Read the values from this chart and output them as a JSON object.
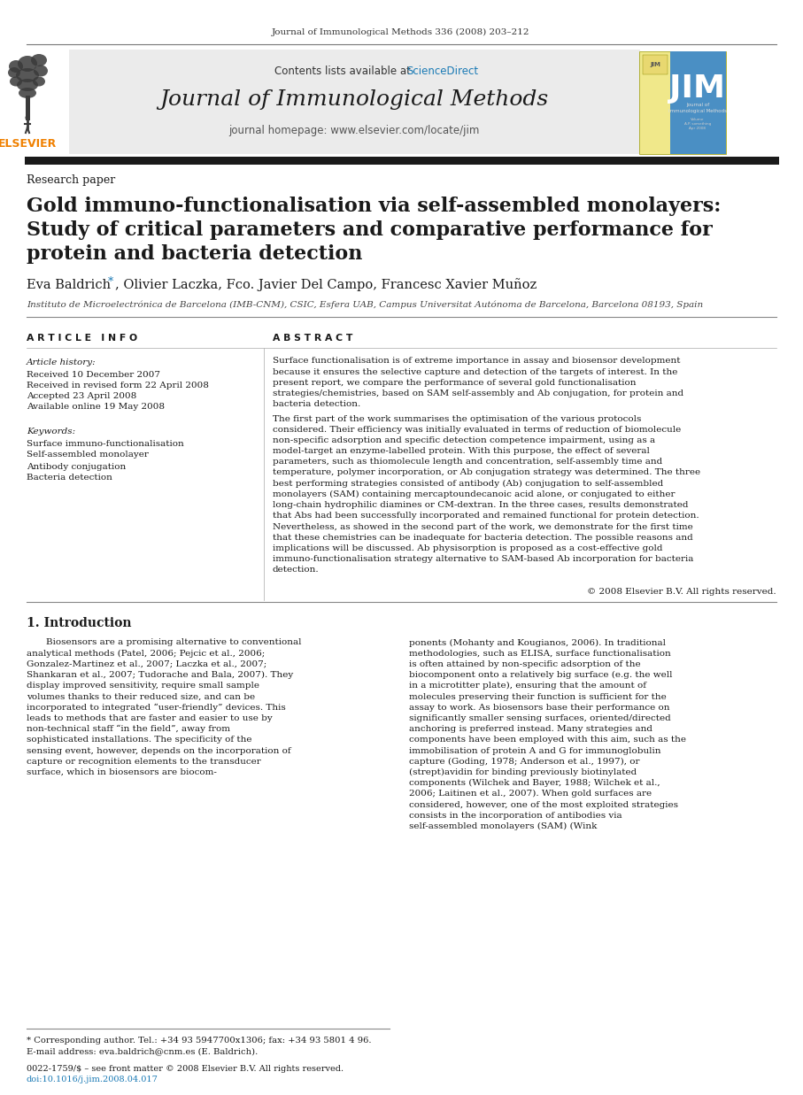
{
  "journal_header": "Journal of Immunological Methods 336 (2008) 203–212",
  "contents_line": "Contents lists available at",
  "sciencedirect": "ScienceDirect",
  "journal_title": "Journal of Immunological Methods",
  "journal_homepage": "journal homepage: www.elsevier.com/locate/jim",
  "section_label": "Research paper",
  "paper_title_line1": "Gold immuno-functionalisation via self-assembled monolayers:",
  "paper_title_line2": "Study of critical parameters and comparative performance for",
  "paper_title_line3": "protein and bacteria detection",
  "author_part1": "Eva Baldrich",
  "author_star": "*",
  "author_part2": ", Olivier Laczka, Fco. Javier Del Campo, Francesc Xavier Muñoz",
  "affiliation": "Instituto de Microelectrónica de Barcelona (IMB-CNM), CSIC, Esfera UAB, Campus Universitat Autónoma de Barcelona, Barcelona 08193, Spain",
  "article_info_header": "A R T I C L E   I N F O",
  "abstract_header": "A B S T R A C T",
  "article_history_label": "Article history:",
  "received1": "Received 10 December 2007",
  "received2": "Received in revised form 22 April 2008",
  "accepted": "Accepted 23 April 2008",
  "online": "Available online 19 May 2008",
  "keywords_label": "Keywords:",
  "keywords": [
    "Surface immuno-functionalisation",
    "Self-assembled monolayer",
    "Antibody conjugation",
    "Bacteria detection"
  ],
  "abstract_para1": "Surface functionalisation is of extreme importance in assay and biosensor development because it ensures the selective capture and detection of the targets of interest. In the present report, we compare the performance of several gold functionalisation strategies/chemistries, based on SAM self-assembly and Ab conjugation, for protein and bacteria detection.",
  "abstract_para2": "The first part of the work summarises the optimisation of the various protocols considered. Their efficiency was initially evaluated in terms of reduction of biomolecule non-specific adsorption and specific detection competence impairment, using as a model-target an enzyme-labelled protein. With this purpose, the effect of several parameters, such as thiomolecule length and concentration, self-assembly time and temperature, polymer incorporation, or Ab conjugation strategy was determined. The three best performing strategies consisted of antibody (Ab) conjugation to self-assembled monolayers (SAM) containing mercaptoundecanoic acid alone, or conjugated to either long-chain hydrophilic diamines or CM-dextran. In the three cases, results demonstrated that Abs had been successfully incorporated and remained functional for protein detection. Nevertheless, as showed in the second part of the work, we demonstrate for the first time that these chemistries can be inadequate for bacteria detection. The possible reasons and implications will be discussed. Ab physisorption is proposed as a cost-effective gold immuno-functionalisation strategy alternative to SAM-based Ab incorporation for bacteria detection.",
  "abstract_copyright": "© 2008 Elsevier B.V. All rights reserved.",
  "intro_header": "1. Introduction",
  "intro_col1": "Biosensors are a promising alternative to conventional analytical methods (Patel, 2006; Pejcic et al., 2006; Gonzalez-Martinez et al., 2007; Laczka et al., 2007; Shankaran et al., 2007; Tudorache and Bala, 2007). They display improved sensitivity, require small sample volumes thanks to their reduced size, and can be incorporated to integrated “user-friendly” devices. This leads to methods that are faster and easier to use by non-technical staff “in the field”, away from sophisticated installations. The specificity of the sensing event, however, depends on the incorporation of capture or recognition elements to the transducer surface, which in biosensors are biocom-",
  "intro_col2": "ponents (Mohanty and Kougianos, 2006). In traditional methodologies, such as ELISA, surface functionalisation is often attained by non-specific adsorption of the biocomponent onto a relatively big surface (e.g. the well in a microtitter plate), ensuring that the amount of molecules preserving their function is sufficient for the assay to work. As biosensors base their performance on significantly smaller sensing surfaces, oriented/directed anchoring is preferred instead. Many strategies and components have been employed with this aim, such as the immobilisation of protein A and G for immunoglobulin capture (Goding, 1978; Anderson et al., 1997), or (strept)avidin for binding previously biotinylated components (Wilchek and Bayer, 1988; Wilchek et al., 2006; Laitinen et al., 2007). When gold surfaces are considered, however, one of the most exploited strategies consists in the incorporation of antibodies via self-assembled monolayers (SAM) (Wink",
  "footnote_star": "* Corresponding author. Tel.: +34 93 5947700x1306; fax: +34 93 5801 4 96.",
  "footnote_email": "E-mail address: eva.baldrich@cnm.es (E. Baldrich).",
  "footnote_issn": "0022-1759/$ – see front matter © 2008 Elsevier B.V. All rights reserved.",
  "footnote_doi": "doi:10.1016/j.jim.2008.04.017",
  "elsevier_color": "#f08000",
  "sciencedirect_color": "#1a7ab5",
  "link_color": "#1a7ab5",
  "header_bg": "#ebebeb",
  "thick_bar_color": "#1a1a1a",
  "bg_color": "#ffffff"
}
